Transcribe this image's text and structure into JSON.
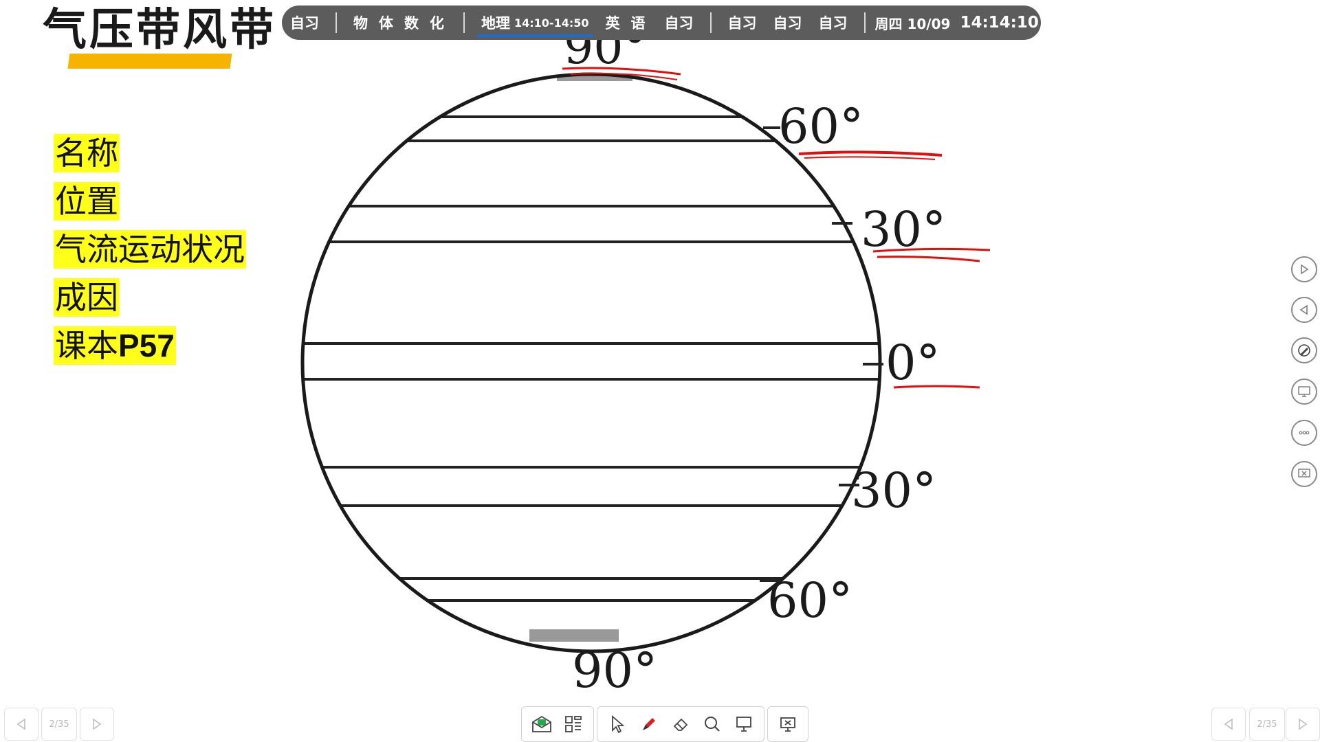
{
  "slide": {
    "title": "气压带风带",
    "labels": [
      "名称",
      "位置",
      "气流运动状况",
      "成因"
    ],
    "textbook_prefix": "课本",
    "textbook_page": "P57"
  },
  "schedule": {
    "items": [
      "自习",
      "物体数化",
      "地理",
      "14:10-14:50",
      "英语",
      "自习",
      "自习",
      "自习",
      "自习"
    ],
    "date": "周四 10/09",
    "time": "14:14:10",
    "active_color": "#1f6cd1"
  },
  "diagram": {
    "latitude_labels": [
      "90°",
      "60°",
      "30°",
      "0°",
      "30°",
      "60°",
      "90°"
    ],
    "latitude_values": [
      90,
      60,
      30,
      0,
      -30,
      -60,
      -90
    ],
    "annotation_color": "#e01010"
  },
  "pagination": {
    "left": "2/35",
    "right": "2/35"
  },
  "tools": [
    "send-icon",
    "apps-icon",
    "pointer-icon",
    "pen-icon",
    "eraser-icon",
    "search-icon",
    "screen-icon",
    "exit-icon"
  ]
}
